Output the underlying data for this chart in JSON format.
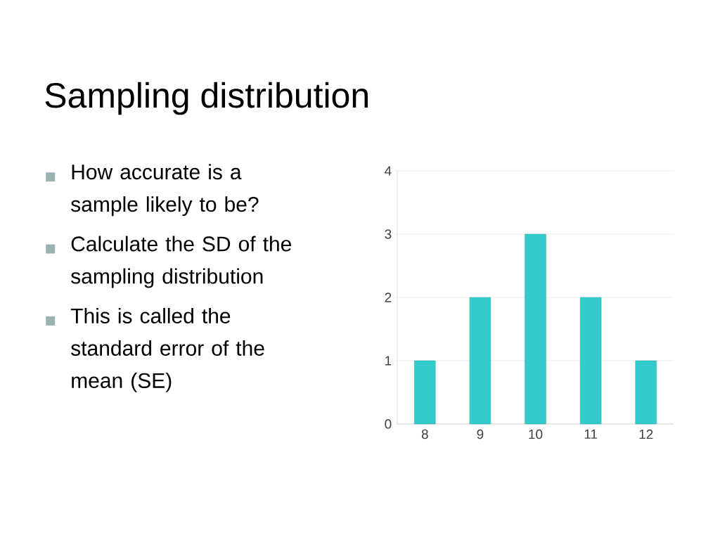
{
  "chart_data": {
    "type": "bar",
    "title": "Sampling distribution",
    "annotations": [
      "How accurate is a sample likely to be?",
      "Calculate the SD of the sampling distribution",
      "This is called the standard error of the mean (SE)"
    ],
    "categories": [
      "8",
      "9",
      "10",
      "11",
      "12"
    ],
    "values": [
      1,
      2,
      3,
      2,
      1
    ],
    "color": "#33cccc",
    "ylim": [
      0,
      4
    ],
    "yticks": [
      0,
      1,
      2,
      3,
      4
    ],
    "grid": "y"
  }
}
